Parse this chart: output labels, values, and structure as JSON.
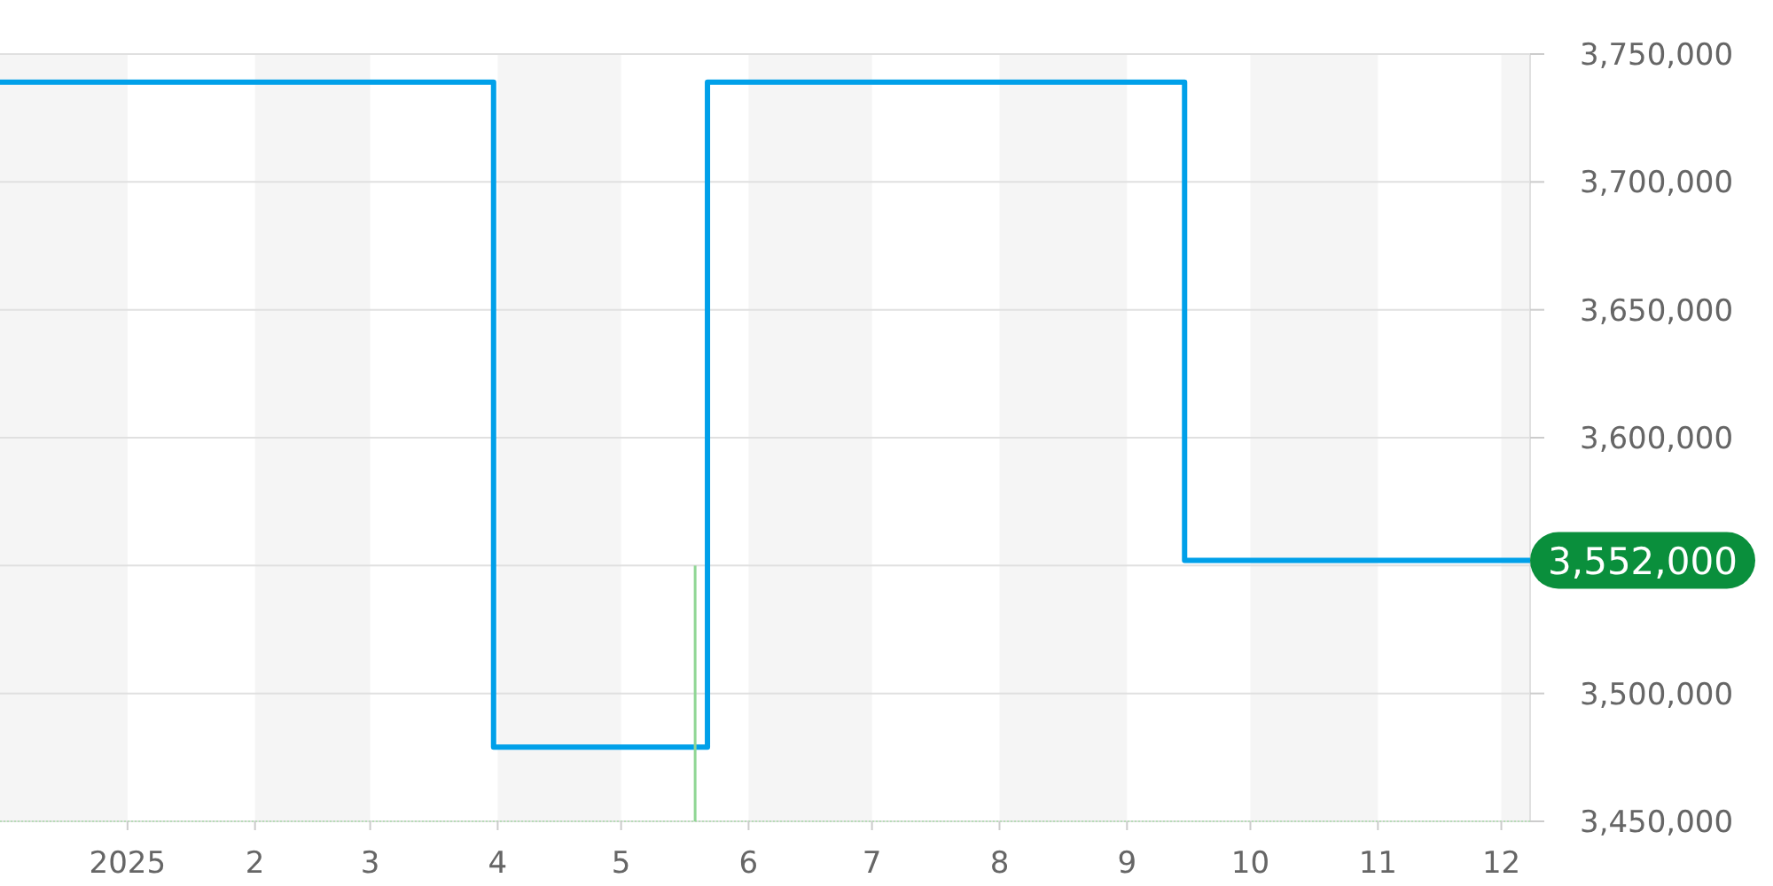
{
  "chart_data": {
    "type": "step",
    "series": [
      {
        "color": "#00a0e9",
        "x": [
          "2024-12-01",
          "2025-03-31",
          "2025-05-22",
          "2025-09-15",
          "2025-12-08"
        ],
        "values": [
          3739000,
          3479000,
          3739000,
          3552000,
          3552000
        ]
      },
      {
        "type": "bar",
        "color": "#8fd694",
        "x": [
          "2025-05-19"
        ],
        "values": [
          3550000
        ]
      }
    ],
    "xlim": [
      "2024-12-01",
      "2025-12-08"
    ],
    "xticks": [
      {
        "value": "2025-01-01",
        "label": "2025"
      },
      {
        "value": "2025-02-01",
        "label": "2"
      },
      {
        "value": "2025-03-01",
        "label": "3"
      },
      {
        "value": "2025-04-01",
        "label": "4"
      },
      {
        "value": "2025-05-01",
        "label": "5"
      },
      {
        "value": "2025-06-01",
        "label": "6"
      },
      {
        "value": "2025-07-01",
        "label": "7"
      },
      {
        "value": "2025-08-01",
        "label": "8"
      },
      {
        "value": "2025-09-01",
        "label": "9"
      },
      {
        "value": "2025-10-01",
        "label": "10"
      },
      {
        "value": "2025-11-01",
        "label": "11"
      },
      {
        "value": "2025-12-01",
        "label": "12"
      }
    ],
    "ylim": [
      3450000,
      3750000
    ],
    "yticks": [
      {
        "value": 3450000,
        "label": "3,450,000"
      },
      {
        "value": 3500000,
        "label": "3,500,000"
      },
      {
        "value": 3550000,
        "label": null
      },
      {
        "value": 3600000,
        "label": "3,600,000"
      },
      {
        "value": 3650000,
        "label": "3,650,000"
      },
      {
        "value": 3700000,
        "label": "3,700,000"
      },
      {
        "value": 3750000,
        "label": "3,750,000"
      }
    ],
    "grid": "y",
    "bands": [
      {
        "axis": "x",
        "from": "2024-12-01",
        "to": "2025-01-01",
        "color": "#f5f5f5"
      },
      {
        "axis": "x",
        "from": "2025-02-01",
        "to": "2025-03-01",
        "color": "#f5f5f5"
      },
      {
        "axis": "x",
        "from": "2025-04-01",
        "to": "2025-05-01",
        "color": "#f5f5f5"
      },
      {
        "axis": "x",
        "from": "2025-06-01",
        "to": "2025-07-01",
        "color": "#f5f5f5"
      },
      {
        "axis": "x",
        "from": "2025-08-01",
        "to": "2025-09-01",
        "color": "#f5f5f5"
      },
      {
        "axis": "x",
        "from": "2025-10-01",
        "to": "2025-11-01",
        "color": "#f5f5f5"
      },
      {
        "axis": "x",
        "from": "2025-12-01",
        "to": "2025-12-08",
        "color": "#f5f5f5"
      }
    ],
    "annotations": [
      {
        "text": "3,552,000",
        "x": "2025-12-08",
        "y": 3552000
      }
    ]
  }
}
